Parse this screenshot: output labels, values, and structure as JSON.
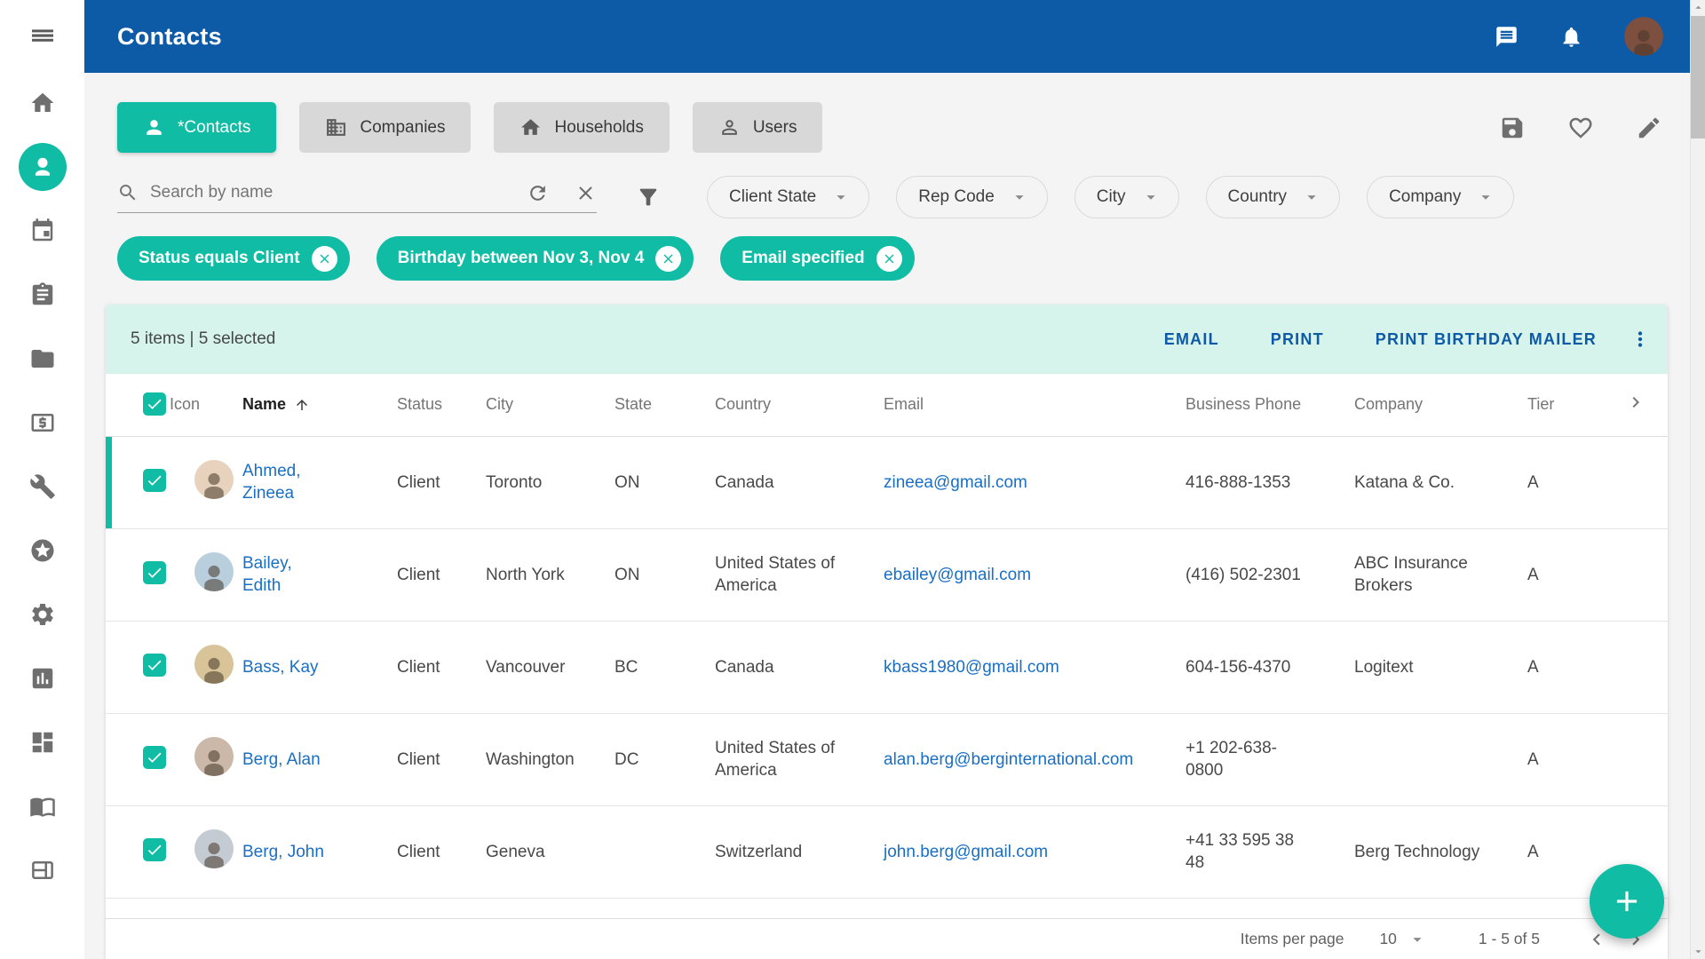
{
  "colors": {
    "accent_teal": "#10bca3",
    "header_blue": "#0d5aa7",
    "action_bar_mint": "#d6f3ec",
    "link_blue": "#1a6fc4"
  },
  "header": {
    "title": "Contacts",
    "avatar_bg": "#7c4f3f"
  },
  "sidebar": {
    "menu_icon": "menu",
    "items": [
      {
        "icon": "home",
        "active": false
      },
      {
        "icon": "contacts",
        "active": true
      },
      {
        "icon": "calendar",
        "active": false
      },
      {
        "icon": "tasks",
        "active": false
      },
      {
        "icon": "folder",
        "active": false
      },
      {
        "icon": "billing",
        "active": false
      },
      {
        "icon": "tools",
        "active": false
      },
      {
        "icon": "favorites",
        "active": false
      },
      {
        "icon": "settings",
        "active": false
      },
      {
        "icon": "reports",
        "active": false
      },
      {
        "icon": "dashboard",
        "active": false
      },
      {
        "icon": "book",
        "active": false
      },
      {
        "icon": "layout",
        "active": false
      }
    ]
  },
  "tabs": [
    {
      "label": "*Contacts",
      "icon": "person",
      "active": true
    },
    {
      "label": "Companies",
      "icon": "company",
      "active": false
    },
    {
      "label": "Households",
      "icon": "home",
      "active": false
    },
    {
      "label": "Users",
      "icon": "person-outline",
      "active": false
    }
  ],
  "toolbar_icons": [
    "save",
    "heart",
    "edit"
  ],
  "search": {
    "placeholder": "Search by name",
    "value": ""
  },
  "filters": {
    "dropdowns": [
      "Client State",
      "Rep Code",
      "City",
      "Country",
      "Company"
    ],
    "chips": [
      "Status equals Client",
      "Birthday between Nov 3, Nov 4",
      "Email specified"
    ]
  },
  "table": {
    "summary": "5 items | 5 selected",
    "actions": [
      "EMAIL",
      "PRINT",
      "PRINT BIRTHDAY MAILER"
    ],
    "columns": [
      {
        "label": "Icon"
      },
      {
        "label": "Name",
        "sorted": "asc"
      },
      {
        "label": "Status"
      },
      {
        "label": "City"
      },
      {
        "label": "State"
      },
      {
        "label": "Country"
      },
      {
        "label": "Email"
      },
      {
        "label": "Business Phone"
      },
      {
        "label": "Company"
      },
      {
        "label": "Tier"
      }
    ],
    "rows": [
      {
        "name": "Ahmed, Zineea",
        "status": "Client",
        "city": "Toronto",
        "state": "ON",
        "country": "Canada",
        "email": "zineea@gmail.com",
        "phone": "416-888-1353",
        "company": "Katana & Co.",
        "tier": "A",
        "checked": true,
        "avatar_bg": "#e7d3bd"
      },
      {
        "name": "Bailey, Edith",
        "status": "Client",
        "city": "North York",
        "state": "ON",
        "country": "United States of America",
        "email": "ebailey@gmail.com",
        "phone": "(416) 502-2301",
        "company": "ABC Insurance Brokers",
        "tier": "A",
        "checked": true,
        "avatar_bg": "#b9cfdd"
      },
      {
        "name": "Bass, Kay",
        "status": "Client",
        "city": "Vancouver",
        "state": "BC",
        "country": "Canada",
        "email": "kbass1980@gmail.com",
        "phone": "604-156-4370",
        "company": "Logitext",
        "tier": "A",
        "checked": true,
        "avatar_bg": "#d9c49a"
      },
      {
        "name": "Berg, Alan",
        "status": "Client",
        "city": "Washington",
        "state": "DC",
        "country": "United States of America",
        "email": "alan.berg@berginternational.com",
        "phone": "+1 202-638-0800",
        "company": "",
        "tier": "A",
        "checked": true,
        "avatar_bg": "#cbb8a8"
      },
      {
        "name": "Berg, John",
        "status": "Client",
        "city": "Geneva",
        "state": "",
        "country": "Switzerland",
        "email": "john.berg@gmail.com",
        "phone": "+41 33 595 38 48",
        "company": "Berg Technology",
        "tier": "A",
        "checked": true,
        "avatar_bg": "#c5cbd3"
      }
    ]
  },
  "pagination": {
    "items_per_page_label": "Items per page",
    "items_per_page_value": "10",
    "range": "1 - 5 of 5"
  }
}
